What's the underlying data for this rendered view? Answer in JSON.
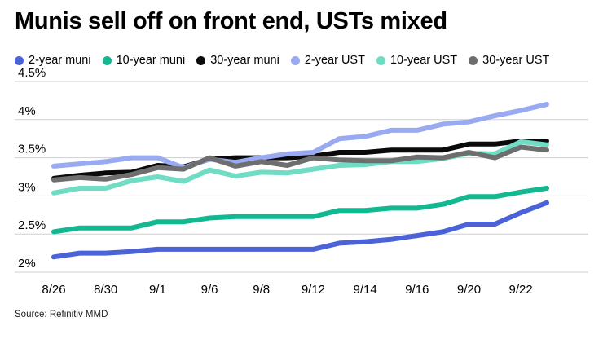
{
  "chart_data": {
    "type": "line",
    "title": "Munis sell off on front end, USTs mixed",
    "source": "Source: Refinitiv MMD",
    "x": [
      "8/26",
      "8/29",
      "8/30",
      "8/31",
      "9/1",
      "9/2",
      "9/6",
      "9/7",
      "9/8",
      "9/9",
      "9/12",
      "9/13",
      "9/14",
      "9/15",
      "9/16",
      "9/19",
      "9/20",
      "9/21",
      "9/22",
      "9/23"
    ],
    "tick_labels": [
      "8/26",
      "8/30",
      "9/1",
      "9/6",
      "9/8",
      "9/12",
      "9/14",
      "9/16",
      "9/20",
      "9/22"
    ],
    "y_ticks": [
      2,
      2.5,
      3,
      3.5,
      4,
      4.5
    ],
    "y_tick_labels": [
      "2%",
      "2.5%",
      "3%",
      "3.5%",
      "4%",
      "4.5%"
    ],
    "ylim": [
      2,
      4.5
    ],
    "grid": "horizontal",
    "legend": "top",
    "series": [
      {
        "name": "2-year muni",
        "color": "#4a63d8",
        "values": [
          2.2,
          2.25,
          2.25,
          2.27,
          2.3,
          2.3,
          2.3,
          2.3,
          2.3,
          2.3,
          2.3,
          2.38,
          2.4,
          2.43,
          2.48,
          2.53,
          2.63,
          2.63,
          2.78,
          2.91
        ]
      },
      {
        "name": "10-year muni",
        "color": "#12b890",
        "values": [
          2.53,
          2.58,
          2.58,
          2.58,
          2.66,
          2.66,
          2.71,
          2.73,
          2.73,
          2.73,
          2.73,
          2.81,
          2.81,
          2.84,
          2.84,
          2.89,
          2.99,
          2.99,
          3.05,
          3.1
        ]
      },
      {
        "name": "30-year muni",
        "color": "#0a0a0a",
        "values": [
          3.23,
          3.27,
          3.3,
          3.31,
          3.4,
          3.38,
          3.48,
          3.5,
          3.5,
          3.5,
          3.52,
          3.57,
          3.57,
          3.6,
          3.6,
          3.6,
          3.68,
          3.68,
          3.72,
          3.72
        ]
      },
      {
        "name": "2-year UST",
        "color": "#9aaaf0",
        "values": [
          3.39,
          3.42,
          3.45,
          3.5,
          3.5,
          3.37,
          3.48,
          3.44,
          3.5,
          3.55,
          3.57,
          3.75,
          3.78,
          3.86,
          3.86,
          3.94,
          3.97,
          4.05,
          4.12,
          4.2
        ]
      },
      {
        "name": "10-year UST",
        "color": "#6fdcc3",
        "values": [
          3.04,
          3.1,
          3.1,
          3.2,
          3.25,
          3.19,
          3.34,
          3.26,
          3.31,
          3.3,
          3.35,
          3.4,
          3.41,
          3.45,
          3.45,
          3.49,
          3.56,
          3.55,
          3.71,
          3.67
        ]
      },
      {
        "name": "30-year UST",
        "color": "#6e6e6e",
        "values": [
          3.21,
          3.24,
          3.22,
          3.28,
          3.37,
          3.35,
          3.5,
          3.39,
          3.45,
          3.4,
          3.5,
          3.47,
          3.46,
          3.46,
          3.51,
          3.5,
          3.57,
          3.5,
          3.64,
          3.6
        ]
      }
    ]
  }
}
